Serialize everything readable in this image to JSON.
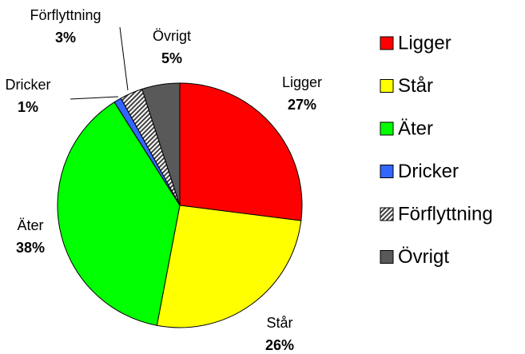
{
  "chart_data": {
    "type": "pie",
    "categories": [
      "Ligger",
      "Står",
      "Äter",
      "Dricker",
      "Förflyttning",
      "Övrigt"
    ],
    "values": [
      27,
      26,
      38,
      1,
      3,
      5
    ],
    "value_labels": [
      "27%",
      "26%",
      "38%",
      "1%",
      "3%",
      "5%"
    ],
    "colors": [
      "#ff0000",
      "#ffff00",
      "#00ff00",
      "#3366ff",
      "#a0a0a0",
      "#595959"
    ],
    "patterns": [
      null,
      null,
      null,
      null,
      "hatch",
      null
    ],
    "legend": "right"
  }
}
